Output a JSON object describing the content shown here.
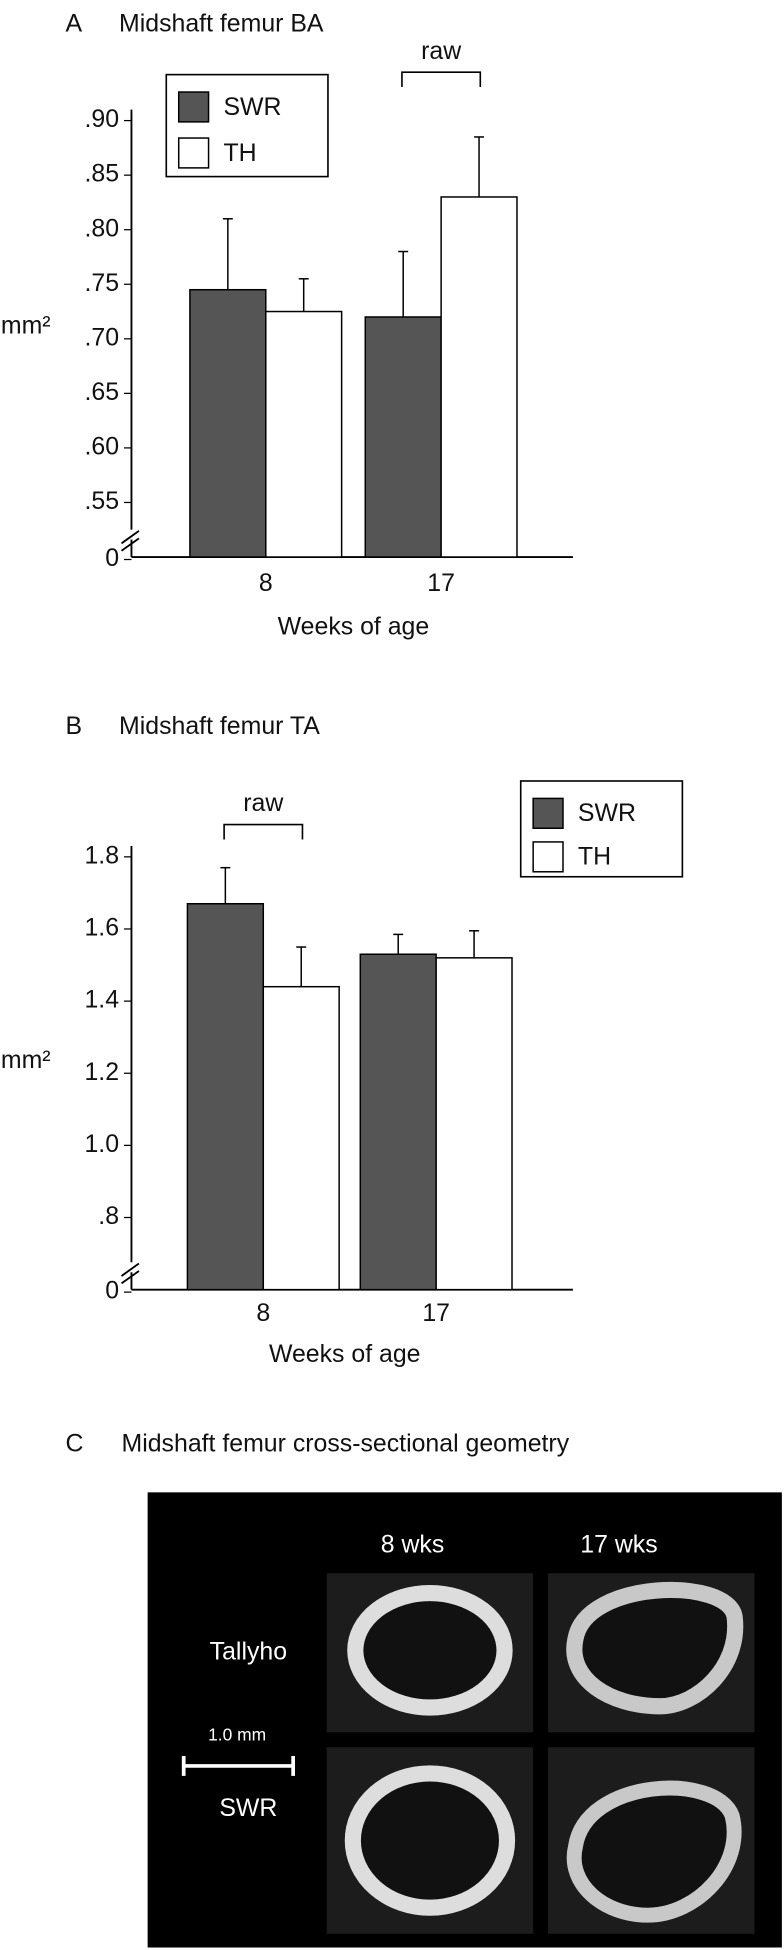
{
  "chart_data": [
    {
      "type": "bar",
      "panel_label": "A",
      "title": "Midshaft femur BA",
      "categories": [
        "8",
        "17"
      ],
      "x_label": "Weeks of age",
      "y_label": "mm²",
      "series": [
        {
          "name": "SWR",
          "color": "#555555",
          "values": [
            0.745,
            0.72
          ],
          "errors": [
            0.065,
            0.06
          ]
        },
        {
          "name": "TH",
          "color": "#ffffff",
          "values": [
            0.725,
            0.83
          ],
          "errors": [
            0.03,
            0.055
          ]
        }
      ],
      "ylim": [
        0.5,
        0.91
      ],
      "axis_break": true,
      "yticks": [
        {
          "value": 0,
          "label": "0"
        },
        {
          "value": 0.55,
          "label": ".55"
        },
        {
          "value": 0.6,
          "label": ".60"
        },
        {
          "value": 0.65,
          "label": ".65"
        },
        {
          "value": 0.7,
          "label": ".70"
        },
        {
          "value": 0.75,
          "label": ".75"
        },
        {
          "value": 0.8,
          "label": ".80"
        },
        {
          "value": 0.85,
          "label": ".85"
        },
        {
          "value": 0.9,
          "label": ".90"
        }
      ],
      "legend": "upper left",
      "annotation": "raw"
    },
    {
      "type": "bar",
      "panel_label": "B",
      "title": "Midshaft femur TA",
      "categories": [
        "8",
        "17"
      ],
      "x_label": "Weeks of age",
      "y_label": "mm²",
      "series": [
        {
          "name": "SWR",
          "color": "#555555",
          "values": [
            1.67,
            1.53
          ],
          "errors": [
            0.1,
            0.055
          ]
        },
        {
          "name": "TH",
          "color": "#ffffff",
          "values": [
            1.44,
            1.52
          ],
          "errors": [
            0.11,
            0.075
          ]
        }
      ],
      "ylim": [
        0.6,
        1.83
      ],
      "axis_break": true,
      "yticks": [
        0,
        {
          "value": 0.8,
          "label": ".8"
        },
        {
          "value": 1.0,
          "label": "1.0"
        },
        1.2,
        1.4,
        1.6,
        1.8
      ],
      "legend": "upper right",
      "annotation": "raw"
    }
  ],
  "panel_c": {
    "panel_label": "C",
    "title": "Midshaft femur cross-sectional geometry",
    "columns": [
      "8 wks",
      "17 wks"
    ],
    "rows": [
      "Tallyho",
      "SWR"
    ],
    "scale_bar": "1.0 mm"
  }
}
